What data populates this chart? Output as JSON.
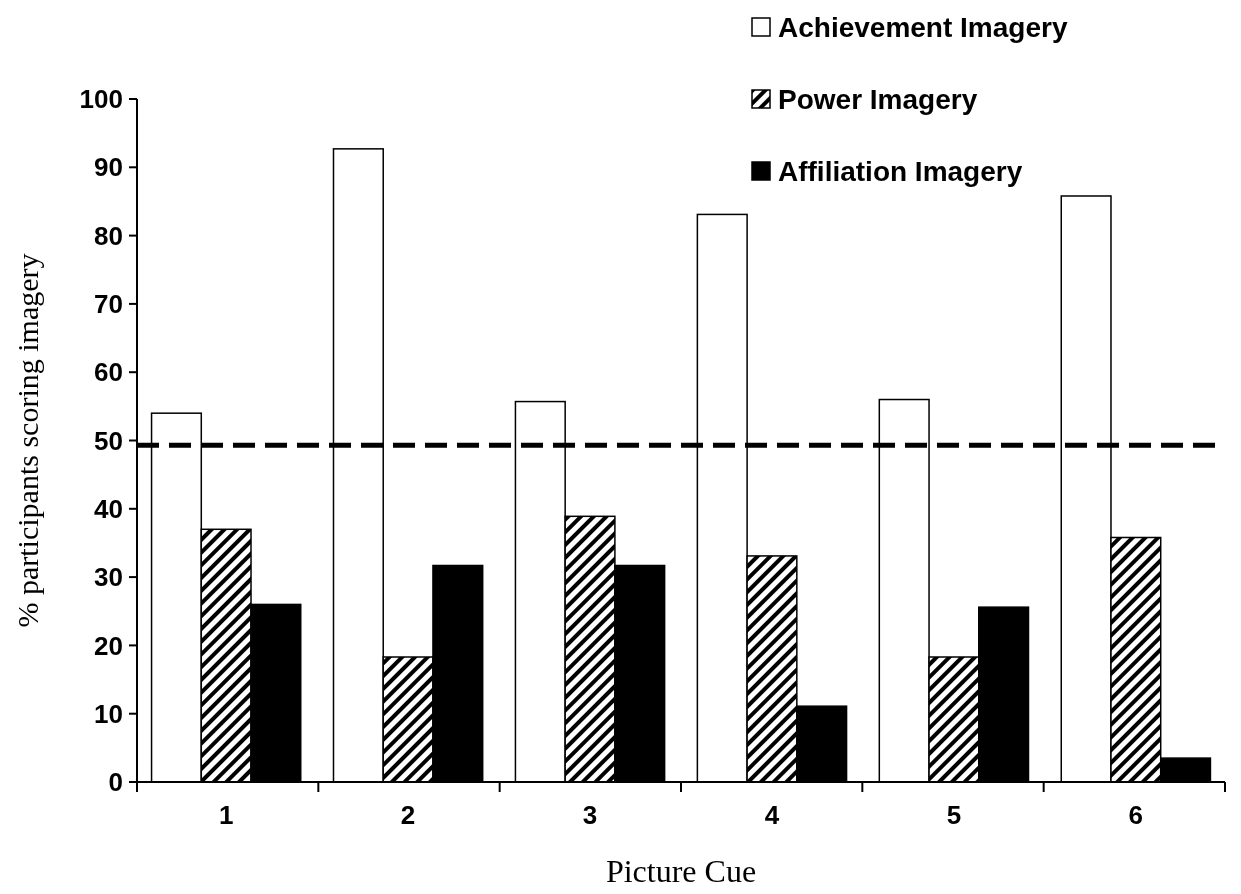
{
  "chart_data": {
    "type": "bar",
    "xlabel": "Picture Cue",
    "ylabel": "% participants scoring imagery",
    "categories": [
      "1",
      "2",
      "3",
      "4",
      "5",
      "6"
    ],
    "series": [
      {
        "name": "Achievement Imagery",
        "color": "#ffffff",
        "values": [
          54,
          92.7,
          55.7,
          83.1,
          56,
          85.8
        ]
      },
      {
        "name": "Power Imagery",
        "color": "#000000",
        "values": [
          37,
          18.3,
          38.9,
          33.1,
          18.3,
          35.8
        ]
      },
      {
        "name": "Affiliation Imagery",
        "color": "#000000",
        "values": [
          26,
          31.7,
          31.7,
          11.1,
          25.6,
          3.5
        ]
      }
    ],
    "ylim": [
      0,
      100
    ],
    "yticks": [
      0,
      10,
      20,
      30,
      40,
      50,
      60,
      70,
      80,
      90,
      100
    ],
    "grid": false,
    "legend": "top right",
    "ref_lines": [
      {
        "axis": "y",
        "value": 49.3,
        "color": "#000000",
        "line_style": "dashed"
      }
    ]
  }
}
